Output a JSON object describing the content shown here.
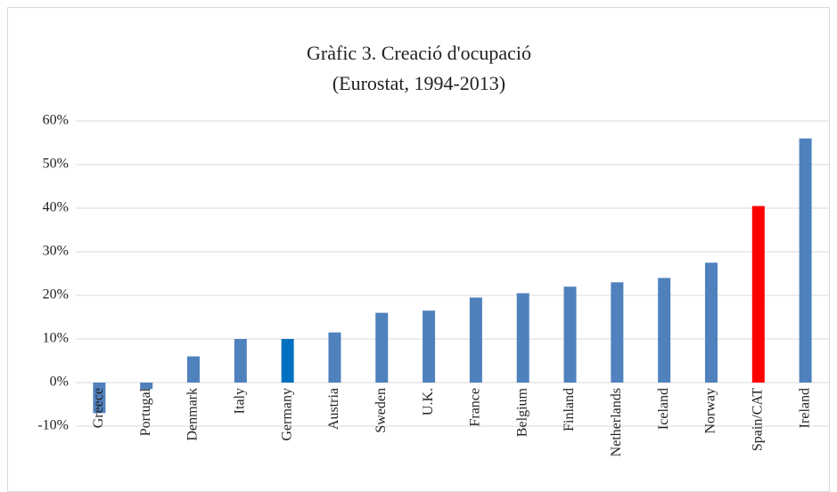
{
  "chart_data": {
    "type": "bar",
    "title": "Gràfic 3. Creació d'ocupació",
    "subtitle": "(Eurostat, 1994-2013)",
    "categories": [
      "Greece",
      "Portugal",
      "Denmark",
      "Italy",
      "Germany",
      "Austria",
      "Sweden",
      "U.K.",
      "France",
      "Belgium",
      "Finland",
      "Netherlands",
      "Iceland",
      "Norway",
      "Spain/CAT",
      "Ireland"
    ],
    "values": [
      -7,
      -1.5,
      6,
      10,
      10,
      11.5,
      16,
      16.5,
      19.5,
      20.5,
      22,
      23,
      24,
      27.5,
      40.5,
      56
    ],
    "colors": [
      "#4f81bd",
      "#4f81bd",
      "#4f81bd",
      "#4f81bd",
      "#0070c0",
      "#4f81bd",
      "#4f81bd",
      "#4f81bd",
      "#4f81bd",
      "#4f81bd",
      "#4f81bd",
      "#4f81bd",
      "#4f81bd",
      "#4f81bd",
      "#ff0000",
      "#4f81bd"
    ],
    "ylim": [
      -10,
      60
    ],
    "yticks": [
      {
        "value": -10,
        "label": "-10%"
      },
      {
        "value": 0,
        "label": "0%"
      },
      {
        "value": 10,
        "label": "10%"
      },
      {
        "value": 20,
        "label": "20%"
      },
      {
        "value": 30,
        "label": "30%"
      },
      {
        "value": 40,
        "label": "40%"
      },
      {
        "value": 50,
        "label": "50%"
      },
      {
        "value": 60,
        "label": "60%"
      }
    ],
    "grid": true
  }
}
